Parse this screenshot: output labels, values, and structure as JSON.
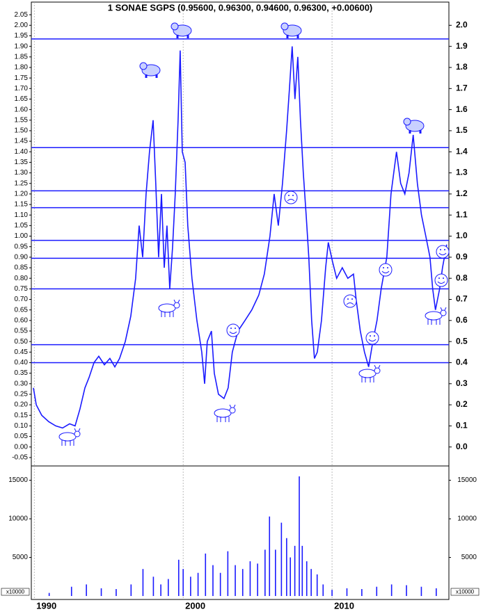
{
  "chart_data": [
    {
      "type": "line",
      "title": "1 SONAE SGPS (0.95600, 0.96300, 0.94600, 0.96300, +0.00600)",
      "color": "#1a1aff",
      "x": [
        1989.94,
        1990.13,
        1990.5,
        1990.97,
        1991.44,
        1991.9,
        1992.37,
        1992.74,
        1993.07,
        1993.4,
        1993.68,
        1994.01,
        1994.33,
        1994.71,
        1995.08,
        1995.41,
        1995.73,
        1996.11,
        1996.48,
        1996.81,
        1997.04,
        1997.28,
        1997.51,
        1997.74,
        1997.98,
        1998.16,
        1998.35,
        1998.54,
        1998.73,
        1998.91,
        1999.1,
        1999.29,
        1999.47,
        1999.66,
        1999.8,
        1999.94,
        2000.13,
        2000.31,
        2000.59,
        2000.92,
        2001.25,
        2001.44,
        2001.62,
        2001.9,
        2002.09,
        2002.37,
        2002.74,
        2003.02,
        2003.3,
        2003.68,
        2004.15,
        2004.61,
        2005.08,
        2005.45,
        2005.83,
        2006.11,
        2006.39,
        2006.67,
        2006.95,
        2007.14,
        2007.32,
        2007.51,
        2007.7,
        2007.88,
        2008.07,
        2008.26,
        2008.44,
        2008.63,
        2008.82,
        2009.01,
        2009.29,
        2009.57,
        2009.75,
        2010.03,
        2010.31,
        2010.69,
        2011.06,
        2011.44,
        2011.62,
        2011.9,
        2012.18,
        2012.46,
        2012.74,
        2013.02,
        2013.3,
        2013.68,
        2013.96,
        2014.33,
        2014.61,
        2014.89,
        2015.17,
        2015.45,
        2015.73,
        2016.01,
        2016.3,
        2016.58,
        2016.76,
        2016.95,
        2017.23,
        2017.42,
        2017.7
      ],
      "values": [
        0.28,
        0.2,
        0.15,
        0.12,
        0.1,
        0.09,
        0.11,
        0.1,
        0.18,
        0.28,
        0.33,
        0.4,
        0.43,
        0.39,
        0.42,
        0.38,
        0.42,
        0.5,
        0.62,
        0.8,
        1.05,
        0.9,
        1.2,
        1.4,
        1.55,
        1.25,
        0.9,
        1.2,
        0.85,
        1.05,
        0.75,
        0.95,
        1.2,
        1.55,
        1.88,
        1.4,
        1.35,
        1.05,
        0.8,
        0.6,
        0.45,
        0.3,
        0.5,
        0.55,
        0.35,
        0.25,
        0.23,
        0.28,
        0.45,
        0.55,
        0.6,
        0.65,
        0.72,
        0.82,
        1.0,
        1.2,
        1.05,
        1.25,
        1.5,
        1.7,
        1.9,
        1.65,
        1.85,
        1.55,
        1.3,
        1.1,
        0.9,
        0.6,
        0.42,
        0.45,
        0.6,
        0.85,
        0.97,
        0.88,
        0.8,
        0.85,
        0.8,
        0.82,
        0.7,
        0.55,
        0.45,
        0.38,
        0.5,
        0.6,
        0.75,
        0.9,
        1.2,
        1.4,
        1.25,
        1.2,
        1.3,
        1.48,
        1.25,
        1.1,
        1.0,
        0.9,
        0.75,
        0.65,
        0.75,
        0.85,
        0.96
      ],
      "hlines": [
        1.935,
        1.42,
        1.215,
        1.135,
        0.98,
        0.895,
        0.75,
        0.485,
        0.4
      ],
      "xlim": [
        1989.8,
        2017.85
      ],
      "xticks": [
        1990,
        2000,
        2010
      ],
      "ylim": [
        -0.09,
        2.11
      ],
      "yticks": [
        -0.05,
        {
          "value": 0,
          "label": "0.00"
        },
        0.05,
        {
          "value": 0.1,
          "label": "0.10"
        },
        0.15,
        {
          "value": 0.2,
          "label": "0.20"
        },
        0.25,
        {
          "value": 0.3,
          "label": "0.30"
        },
        0.35,
        {
          "value": 0.4,
          "label": "0.40"
        },
        0.45,
        {
          "value": 0.5,
          "label": "0.50"
        },
        0.55,
        {
          "value": 0.6,
          "label": "0.60"
        },
        0.65,
        {
          "value": 0.7,
          "label": "0.70"
        },
        0.75,
        {
          "value": 0.8,
          "label": "0.80"
        },
        0.85,
        {
          "value": 0.9,
          "label": "0.90"
        },
        0.95,
        {
          "value": 1,
          "label": "1.00"
        },
        1.05,
        {
          "value": 1.1,
          "label": "1.10"
        },
        1.15,
        {
          "value": 1.2,
          "label": "1.20"
        },
        1.25,
        {
          "value": 1.3,
          "label": "1.30"
        },
        1.35,
        {
          "value": 1.4,
          "label": "1.40"
        },
        1.45,
        {
          "value": 1.5,
          "label": "1.50"
        },
        1.55,
        {
          "value": 1.6,
          "label": "1.60"
        },
        1.65,
        {
          "value": 1.7,
          "label": "1.70"
        },
        1.75,
        {
          "value": 1.8,
          "label": "1.80"
        },
        1.85,
        {
          "value": 1.9,
          "label": "1.90"
        },
        1.95,
        {
          "value": 2,
          "label": "2.00"
        },
        2.05
      ],
      "y2ticks": [
        {
          "value": 0,
          "label": "0.0"
        },
        0.1,
        0.2,
        0.3,
        0.4,
        0.5,
        0.6,
        0.7,
        0.8,
        0.9,
        {
          "value": 1,
          "label": "1.0"
        },
        1.1,
        1.2,
        1.3,
        1.4,
        1.5,
        1.6,
        1.7,
        1.8,
        1.9,
        {
          "value": 2,
          "label": "2.0"
        }
      ]
    },
    {
      "type": "bar",
      "color": "#1a1aff",
      "unit_label": "x10000",
      "x": [
        1991.0,
        1992.5,
        1993.5,
        1994.5,
        1995.5,
        1996.5,
        1997.3,
        1998.0,
        1998.5,
        1999.0,
        1999.7,
        2000.0,
        2000.5,
        2001.0,
        2001.5,
        2002.0,
        2002.5,
        2003.0,
        2003.5,
        2004.0,
        2004.5,
        2005.0,
        2005.5,
        2005.8,
        2006.2,
        2006.6,
        2006.95,
        2007.2,
        2007.5,
        2007.8,
        2008.0,
        2008.3,
        2008.6,
        2009.0,
        2009.4,
        2010.0,
        2011.0,
        2012.0,
        2013.0,
        2014.0,
        2015.0,
        2016.0,
        2017.0
      ],
      "values": [
        400,
        1200,
        1500,
        1000,
        900,
        1500,
        3500,
        2500,
        1500,
        2200,
        4700,
        3500,
        2500,
        3000,
        5500,
        4000,
        3000,
        5800,
        4000,
        3500,
        4500,
        4200,
        6000,
        10300,
        6000,
        9500,
        7500,
        5000,
        6500,
        15500,
        6500,
        4500,
        3500,
        2800,
        1500,
        800,
        1000,
        900,
        1200,
        1500,
        1400,
        1200,
        1000
      ],
      "xlim": [
        1989.8,
        2017.85
      ],
      "xticks": [
        1990,
        2000,
        2010
      ],
      "ylim": [
        -450,
        16850
      ],
      "yticks": [
        5000,
        10000,
        15000
      ]
    }
  ]
}
